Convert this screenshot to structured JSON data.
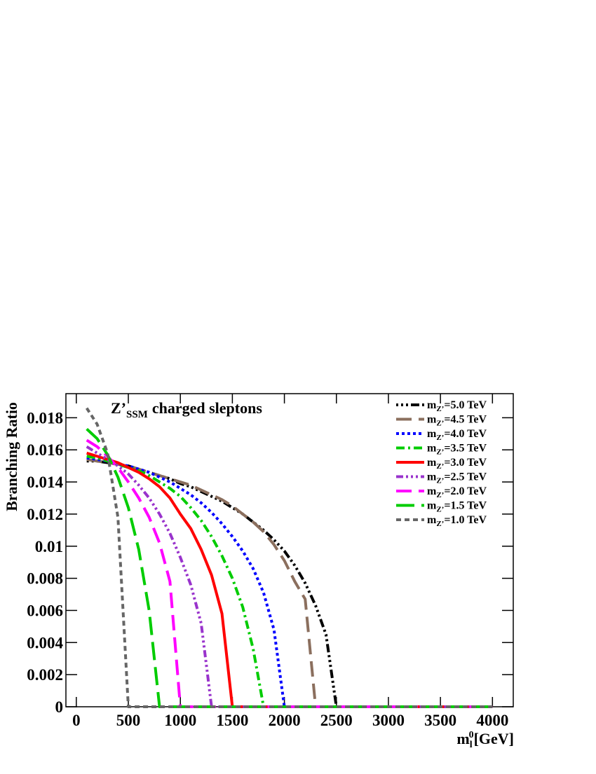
{
  "chart_data": {
    "type": "line",
    "title": "Z’",
    "title_subscript": "SSM",
    "title_suffix": "charged sleptons",
    "ylabel": "Branching Ratio",
    "xlabel": "m",
    "xlabel_subscript": "l",
    "xlabel_superscript": "0",
    "xlabel_suffix": "[GeV]",
    "legend_prefix": "m",
    "legend_subscript": "Z’",
    "legend": "top-right",
    "xlim": [
      -100,
      4200
    ],
    "ylim": [
      0,
      0.0195
    ],
    "xticks": [
      0,
      500,
      1000,
      1500,
      2000,
      2500,
      3000,
      3500,
      4000
    ],
    "yticks": [
      0,
      0.002,
      0.004,
      0.006,
      0.008,
      0.01,
      0.012,
      0.014,
      0.016,
      0.018
    ],
    "series": [
      {
        "name": "=5.0 TeV",
        "color": "#000000",
        "dash": "3,4,3,4,3,4,12,4",
        "x": [
          100,
          200,
          300,
          400,
          500,
          600,
          700,
          800,
          900,
          1000,
          1100,
          1200,
          1300,
          1400,
          1500,
          1600,
          1700,
          1800,
          1900,
          2000,
          2100,
          2200,
          2300,
          2400,
          2500,
          4000
        ],
        "values": [
          0.0153,
          0.0153,
          0.0152,
          0.0151,
          0.015,
          0.0148,
          0.0146,
          0.0144,
          0.0142,
          0.0139,
          0.0137,
          0.0134,
          0.0131,
          0.0128,
          0.0124,
          0.012,
          0.0115,
          0.011,
          0.0104,
          0.0097,
          0.0088,
          0.0077,
          0.0063,
          0.0045,
          0,
          0
        ]
      },
      {
        "name": "=4.5 TeV",
        "color": "#8b6f5e",
        "dash": "22,10",
        "x": [
          100,
          200,
          300,
          400,
          500,
          600,
          700,
          800,
          900,
          1000,
          1100,
          1200,
          1300,
          1400,
          1500,
          1600,
          1700,
          1800,
          1900,
          2000,
          2100,
          2200,
          2300,
          4000
        ],
        "values": [
          0.0154,
          0.0153,
          0.0152,
          0.0151,
          0.015,
          0.0148,
          0.0146,
          0.0144,
          0.0142,
          0.014,
          0.0138,
          0.0135,
          0.0132,
          0.0129,
          0.0125,
          0.012,
          0.0115,
          0.0109,
          0.0101,
          0.0091,
          0.0078,
          0.0067,
          0,
          0
        ]
      },
      {
        "name": "=4.0 TeV",
        "color": "#0000ff",
        "dash": "4,4",
        "x": [
          100,
          200,
          300,
          400,
          500,
          600,
          700,
          800,
          900,
          1000,
          1100,
          1200,
          1300,
          1400,
          1500,
          1600,
          1700,
          1800,
          1900,
          2000,
          4000
        ],
        "values": [
          0.0155,
          0.0154,
          0.0153,
          0.0151,
          0.015,
          0.0148,
          0.0146,
          0.0143,
          0.014,
          0.0136,
          0.0132,
          0.0127,
          0.0121,
          0.0114,
          0.0106,
          0.0097,
          0.0086,
          0.0071,
          0.0048,
          0,
          0
        ]
      },
      {
        "name": "=3.5 TeV",
        "color": "#00cc00",
        "dash": "12,5,3,5",
        "x": [
          100,
          200,
          300,
          400,
          500,
          600,
          700,
          800,
          900,
          1000,
          1100,
          1200,
          1300,
          1400,
          1500,
          1600,
          1700,
          1800,
          4000
        ],
        "values": [
          0.0156,
          0.0155,
          0.0153,
          0.0151,
          0.0149,
          0.0147,
          0.0144,
          0.014,
          0.0136,
          0.0131,
          0.0124,
          0.0116,
          0.0106,
          0.0094,
          0.008,
          0.0062,
          0.0036,
          0,
          0
        ]
      },
      {
        "name": "=3.0 TeV",
        "color": "#ff0000",
        "dash": "none",
        "x": [
          100,
          200,
          300,
          400,
          500,
          600,
          700,
          800,
          900,
          1000,
          1100,
          1200,
          1300,
          1400,
          1500,
          4000
        ],
        "values": [
          0.0158,
          0.0156,
          0.0154,
          0.0152,
          0.0149,
          0.0146,
          0.0142,
          0.0137,
          0.013,
          0.012,
          0.0111,
          0.0098,
          0.0082,
          0.0058,
          0,
          0
        ]
      },
      {
        "name": "=2.5 TeV",
        "color": "#9933cc",
        "dash": "10,4,3,4,3,4,3,4",
        "x": [
          100,
          200,
          300,
          400,
          500,
          600,
          700,
          800,
          900,
          1000,
          1100,
          1200,
          1300,
          4000
        ],
        "values": [
          0.0162,
          0.0158,
          0.0154,
          0.015,
          0.0145,
          0.0138,
          0.013,
          0.012,
          0.0108,
          0.0093,
          0.0076,
          0.0052,
          0,
          0
        ]
      },
      {
        "name": "=2.0 TeV",
        "color": "#ff00ff",
        "dash": "22,10",
        "x": [
          100,
          200,
          300,
          400,
          500,
          600,
          700,
          800,
          900,
          1000,
          4000
        ],
        "values": [
          0.0166,
          0.0162,
          0.0156,
          0.0149,
          0.014,
          0.013,
          0.0118,
          0.0102,
          0.0078,
          0,
          0
        ]
      },
      {
        "name": "=1.5 TeV",
        "color": "#00cc00",
        "dash": "26,10",
        "x": [
          100,
          200,
          300,
          400,
          500,
          600,
          700,
          800,
          4000
        ],
        "values": [
          0.0173,
          0.0167,
          0.0157,
          0.0143,
          0.0124,
          0.0098,
          0.006,
          0,
          0
        ]
      },
      {
        "name": "=1.0 TeV",
        "color": "#666666",
        "dash": "7,5",
        "x": [
          100,
          200,
          300,
          400,
          500,
          4000
        ],
        "values": [
          0.0186,
          0.0176,
          0.0158,
          0.0118,
          0,
          0
        ]
      }
    ]
  }
}
